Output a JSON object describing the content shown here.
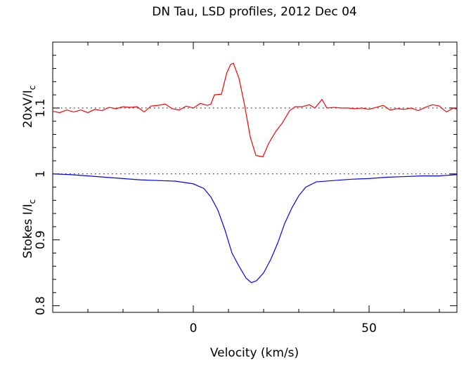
{
  "chart_data": {
    "type": "line",
    "title": "DN Tau, LSD profiles, 2012 Dec 04",
    "xlabel": "Velocity (km/s)",
    "ylabel_top": {
      "text": "20xV/I",
      "sub": "c"
    },
    "ylabel_bottom": {
      "text": "Stokes I/I",
      "sub": "c"
    },
    "xlim": [
      -40,
      75
    ],
    "ylim": [
      0.79,
      1.2
    ],
    "xticks": [
      0,
      50
    ],
    "xminorticks": [
      -30,
      -20,
      -10,
      10,
      20,
      30,
      40,
      60,
      70
    ],
    "yticks": [
      0.8,
      0.9,
      1,
      1.1
    ],
    "yminorticks": [
      0.82,
      0.84,
      0.86,
      0.88,
      0.92,
      0.94,
      0.96,
      0.98,
      1.02,
      1.04,
      1.06,
      1.08,
      1.12,
      1.14,
      1.16,
      1.18
    ],
    "hlines": [
      1.1,
      1
    ],
    "series": [
      {
        "color": "#ff0000",
        "x": [
          -40,
          -38,
          -36,
          -34,
          -32,
          -30,
          -28,
          -26,
          -24,
          -22,
          -20,
          -18,
          -16,
          -14,
          -12,
          -10,
          -8,
          -6,
          -4,
          -2,
          0,
          2,
          4,
          5,
          6,
          8,
          9.5,
          10.6,
          11.4,
          13,
          14.6,
          16.2,
          17.8,
          19.8,
          21.4,
          23.4,
          25.4,
          27.4,
          29,
          31,
          33,
          34.6,
          36.6,
          38,
          40,
          42,
          44,
          46,
          48,
          50,
          52,
          54,
          56,
          58,
          60,
          62,
          64,
          66,
          68,
          70,
          72,
          74,
          75
        ],
        "values": [
          1.095,
          1.093,
          1.097,
          1.094,
          1.097,
          1.093,
          1.098,
          1.096,
          1.101,
          1.099,
          1.102,
          1.101,
          1.102,
          1.094,
          1.103,
          1.104,
          1.106,
          1.099,
          1.097,
          1.103,
          1.1,
          1.107,
          1.104,
          1.106,
          1.12,
          1.121,
          1.153,
          1.166,
          1.168,
          1.145,
          1.104,
          1.056,
          1.028,
          1.026,
          1.046,
          1.064,
          1.078,
          1.096,
          1.102,
          1.102,
          1.105,
          1.1,
          1.113,
          1.1,
          1.101,
          1.1,
          1.1,
          1.099,
          1.1,
          1.098,
          1.101,
          1.104,
          1.097,
          1.099,
          1.098,
          1.1,
          1.096,
          1.101,
          1.105,
          1.103,
          1.094,
          1.1,
          1.098
        ]
      },
      {
        "color": "#0000ff",
        "x": [
          -40,
          -35,
          -30,
          -25,
          -20,
          -15,
          -10,
          -5,
          0,
          3,
          5,
          7,
          9,
          11,
          13,
          15,
          16.5,
          18,
          20,
          22,
          24,
          26,
          28,
          30,
          32,
          35,
          40,
          45,
          50,
          55,
          60,
          65,
          70,
          75
        ],
        "values": [
          1.0,
          0.999,
          0.997,
          0.995,
          0.993,
          0.991,
          0.99,
          0.989,
          0.985,
          0.978,
          0.965,
          0.945,
          0.915,
          0.88,
          0.86,
          0.842,
          0.835,
          0.838,
          0.85,
          0.87,
          0.895,
          0.925,
          0.948,
          0.967,
          0.98,
          0.988,
          0.99,
          0.992,
          0.993,
          0.995,
          0.996,
          0.997,
          0.997,
          0.999
        ]
      }
    ]
  }
}
